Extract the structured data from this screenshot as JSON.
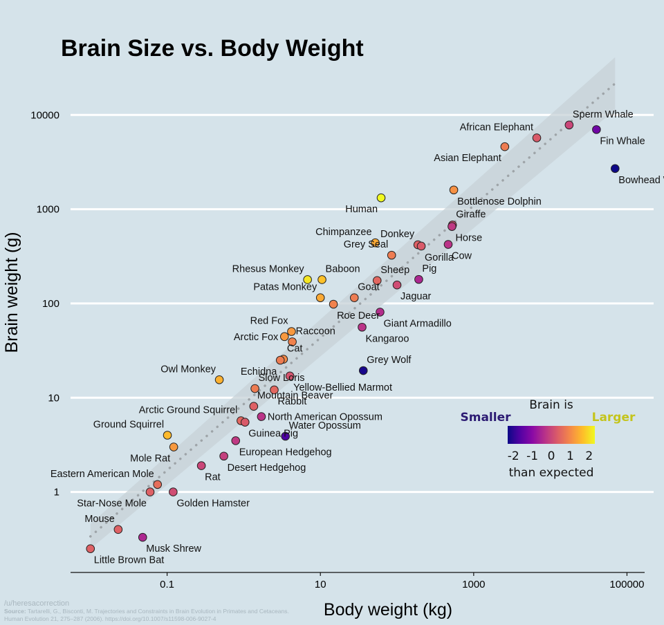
{
  "chart_data": {
    "type": "scatter",
    "title": "Brain Size vs. Body Weight",
    "xlabel": "Body weight (kg)",
    "ylabel": "Brain weight (g)",
    "x_scale": "log",
    "y_scale": "log",
    "xlim": [
      0.0055,
      170000
    ],
    "ylim": [
      0.14,
      25000
    ],
    "x_ticks": [
      0.1,
      10,
      1000,
      100000
    ],
    "x_tick_labels": [
      "0.1",
      "10",
      "1000",
      "100000"
    ],
    "y_ticks": [
      1,
      10,
      100,
      1000,
      10000
    ],
    "y_tick_labels": [
      "1",
      "10",
      "100",
      "1000",
      "10000"
    ],
    "grid": "horizontal",
    "trend_line": {
      "style": "dotted",
      "band": true,
      "x_range": [
        0.01,
        70000
      ]
    },
    "legend": {
      "title": "Brain is",
      "low_label": "Smaller",
      "high_label": "Larger",
      "tick_labels": [
        "-2",
        "-1",
        "0",
        "1",
        "2"
      ],
      "range": [
        -2.3,
        2.3
      ],
      "subtitle": "than expected",
      "placement": "lower-right"
    },
    "colors": [
      "#0d0887",
      "#5302a3",
      "#8b0aa5",
      "#b83289",
      "#db5c68",
      "#f48849",
      "#febc2a",
      "#f0f921"
    ],
    "points": [
      {
        "name": "Sperm Whale",
        "x": 17600,
        "y": 7820,
        "z": 0.0,
        "label_pos": "top-right"
      },
      {
        "name": "Fin Whale",
        "x": 40000,
        "y": 7000,
        "z": -1.3,
        "label_pos": "bottom-right"
      },
      {
        "name": "African Elephant",
        "x": 6650,
        "y": 5712,
        "z": 0.3,
        "label_pos": "top-left"
      },
      {
        "name": "Asian Elephant",
        "x": 2547,
        "y": 4603,
        "z": 0.8,
        "label_pos": "bottom-left"
      },
      {
        "name": "Bowhead Whale",
        "x": 70000,
        "y": 2700,
        "z": -2.3,
        "label_pos": "bottom-right"
      },
      {
        "name": "Bottlenose Dolphin",
        "x": 550,
        "y": 1600,
        "z": 1.1,
        "label_pos": "bottom-right"
      },
      {
        "name": "Human",
        "x": 62,
        "y": 1320,
        "z": 2.3,
        "label_pos": "bottom-left"
      },
      {
        "name": "Giraffe",
        "x": 529,
        "y": 680,
        "z": 0.2,
        "label_pos": "top-right"
      },
      {
        "name": "Horse",
        "x": 521,
        "y": 655,
        "z": -0.2,
        "label_pos": "bottom-right"
      },
      {
        "name": "Chimpanzee",
        "x": 52,
        "y": 440,
        "z": 1.4,
        "label_pos": "top-left"
      },
      {
        "name": "Donkey",
        "x": 187,
        "y": 419,
        "z": 0.4,
        "label_pos": "top-left"
      },
      {
        "name": "Gorilla",
        "x": 207,
        "y": 406,
        "z": 0.3,
        "label_pos": "bottom-right"
      },
      {
        "name": "Cow",
        "x": 465,
        "y": 423,
        "z": -0.3,
        "label_pos": "bottom-right"
      },
      {
        "name": "Grey Seal",
        "x": 85,
        "y": 325,
        "z": 0.8,
        "label_pos": "top-left"
      },
      {
        "name": "Rhesus Monkey",
        "x": 6.8,
        "y": 179,
        "z": 2.1,
        "label_pos": "top-left"
      },
      {
        "name": "Baboon",
        "x": 10.5,
        "y": 179,
        "z": 1.7,
        "label_pos": "top-right"
      },
      {
        "name": "Sheep",
        "x": 55,
        "y": 175,
        "z": 0.5,
        "label_pos": "top-right"
      },
      {
        "name": "Pig",
        "x": 192,
        "y": 180,
        "z": -0.5,
        "label_pos": "top-right"
      },
      {
        "name": "Jaguar",
        "x": 100,
        "y": 157,
        "z": 0.1,
        "label_pos": "bottom-right"
      },
      {
        "name": "Patas Monkey",
        "x": 10,
        "y": 115,
        "z": 1.4,
        "label_pos": "top-left"
      },
      {
        "name": "Goat",
        "x": 27.7,
        "y": 115,
        "z": 0.8,
        "label_pos": "top-right"
      },
      {
        "name": "Roe Deer",
        "x": 14.8,
        "y": 98.2,
        "z": 0.9,
        "label_pos": "bottom-right"
      },
      {
        "name": "Giant Armadillo",
        "x": 60,
        "y": 81,
        "z": -0.4,
        "label_pos": "bottom-right"
      },
      {
        "name": "Kangaroo",
        "x": 35,
        "y": 56,
        "z": -0.3,
        "label_pos": "bottom-right"
      },
      {
        "name": "Red Fox",
        "x": 4.2,
        "y": 50.4,
        "z": 1.2,
        "label_pos": "top-left"
      },
      {
        "name": "Arctic Fox",
        "x": 3.4,
        "y": 44.5,
        "z": 1.2,
        "label_pos": "left"
      },
      {
        "name": "Raccoon",
        "x": 4.3,
        "y": 39.2,
        "z": 0.9,
        "label_pos": "top-right"
      },
      {
        "name": "Cat",
        "x": 3.3,
        "y": 25.6,
        "z": 1.0,
        "label_pos": "top-right"
      },
      {
        "name": "Echidna",
        "x": 3.0,
        "y": 25,
        "z": 0.8,
        "label_pos": "bottom-left"
      },
      {
        "name": "Grey Wolf",
        "x": 36.3,
        "y": 19.4,
        "z": -2.2,
        "label_pos": "top-right"
      },
      {
        "name": "Owl Monkey",
        "x": 0.48,
        "y": 15.5,
        "z": 1.5,
        "label_pos": "top-left"
      },
      {
        "name": "Slow Loris",
        "x": 1.4,
        "y": 12.5,
        "z": 0.8,
        "label_pos": "top-right"
      },
      {
        "name": "Yellow-Bellied Marmot",
        "x": 4.0,
        "y": 17,
        "z": 0.2,
        "label_pos": "bottom-right"
      },
      {
        "name": "Rabbit",
        "x": 2.5,
        "y": 12.1,
        "z": 0.5,
        "label_pos": "bottom-right"
      },
      {
        "name": "Mountain Beaver",
        "x": 1.35,
        "y": 8.1,
        "z": 0.4,
        "label_pos": "top-right"
      },
      {
        "name": "Arctic Ground Squirrel",
        "x": 0.92,
        "y": 5.7,
        "z": 0.5,
        "label_pos": "top-left"
      },
      {
        "name": "North American Opossum",
        "x": 1.7,
        "y": 6.3,
        "z": -0.3,
        "label_pos": "right"
      },
      {
        "name": "Guinea Pig",
        "x": 1.04,
        "y": 5.5,
        "z": 0.3,
        "label_pos": "bottom-right"
      },
      {
        "name": "Ground Squirrel",
        "x": 0.101,
        "y": 4.0,
        "z": 1.6,
        "label_pos": "top-left"
      },
      {
        "name": "Water Opossum",
        "x": 3.5,
        "y": 3.9,
        "z": -1.7,
        "label_pos": "top-right"
      },
      {
        "name": "European Hedgehog",
        "x": 0.785,
        "y": 3.5,
        "z": -0.2,
        "label_pos": "bottom-right"
      },
      {
        "name": "Mole Rat",
        "x": 0.122,
        "y": 3.0,
        "z": 1.2,
        "label_pos": "bottom-left"
      },
      {
        "name": "Desert Hedgehog",
        "x": 0.55,
        "y": 2.4,
        "z": -0.1,
        "label_pos": "bottom-right"
      },
      {
        "name": "Rat",
        "x": 0.28,
        "y": 1.9,
        "z": 0.0,
        "label_pos": "bottom-right"
      },
      {
        "name": "Eastern American Mole",
        "x": 0.075,
        "y": 1.2,
        "z": 0.6,
        "label_pos": "top-left"
      },
      {
        "name": "Star-Nose Mole",
        "x": 0.06,
        "y": 1.0,
        "z": 0.4,
        "label_pos": "bottom-left"
      },
      {
        "name": "Golden Hamster",
        "x": 0.12,
        "y": 1.0,
        "z": 0.1,
        "label_pos": "bottom-right"
      },
      {
        "name": "Mouse",
        "x": 0.023,
        "y": 0.4,
        "z": 0.4,
        "label_pos": "top-left"
      },
      {
        "name": "Musk Shrew",
        "x": 0.048,
        "y": 0.33,
        "z": -0.5,
        "label_pos": "bottom-right"
      },
      {
        "name": "Little Brown Bat",
        "x": 0.01,
        "y": 0.25,
        "z": 0.4,
        "label_pos": "bottom-right"
      }
    ]
  },
  "credits": {
    "author": "/u/heresacorrection",
    "source_label": "Source:",
    "source_text": "Tartarelli, G., Bisconti, M. Trajectories and Constraints in Brain Evolution in Primates and Cetaceans.",
    "citation": "Human Evolution 21, 275–287 (2006). https://doi.org/10.1007/s11598-006-9027-4"
  }
}
